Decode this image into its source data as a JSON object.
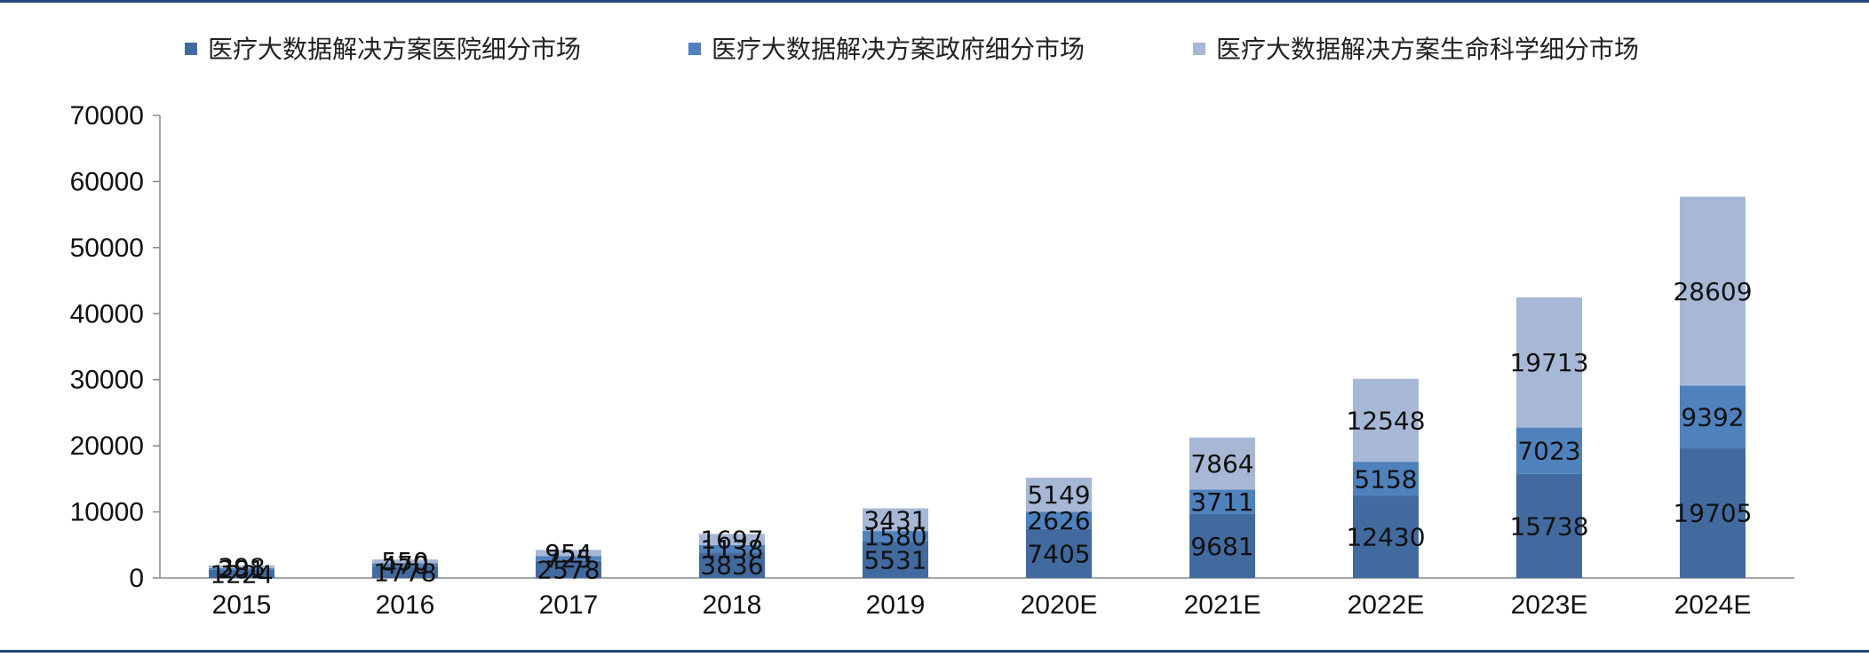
{
  "chart_data": {
    "type": "bar",
    "stacked": true,
    "categories": [
      "2015",
      "2016",
      "2017",
      "2018",
      "2019",
      "2020E",
      "2021E",
      "2022E",
      "2023E",
      "2024E"
    ],
    "series": [
      {
        "name": "医疗大数据解决方案医院细分市场",
        "color": "#426a9f",
        "values": [
          1224,
          1778,
          2578,
          3836,
          5531,
          7405,
          9681,
          12430,
          15738,
          19705
        ]
      },
      {
        "name": "医疗大数据解决方案政府细分市场",
        "color": "#4f81bd",
        "values": [
          281,
          470,
          725,
          1138,
          1580,
          2626,
          3711,
          5158,
          7023,
          9392
        ]
      },
      {
        "name": "医疗大数据解决方案生命科学细分市场",
        "color": "#a7b8d6",
        "values": [
          398,
          550,
          954,
          1697,
          3431,
          5149,
          7864,
          12548,
          19713,
          28609
        ]
      }
    ],
    "yticks": [
      "0",
      "10000",
      "20000",
      "30000",
      "40000",
      "50000",
      "60000",
      "70000"
    ],
    "ylim": [
      0,
      70000
    ],
    "xlabel": "",
    "ylabel": "",
    "grid": false,
    "legend_position": "top"
  }
}
